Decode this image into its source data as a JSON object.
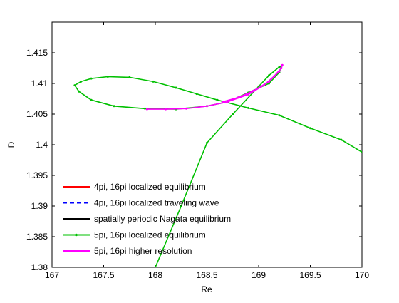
{
  "chart_data": {
    "type": "line",
    "title": "",
    "xlabel": "Re",
    "ylabel": "D",
    "xlim": [
      167,
      170
    ],
    "ylim": [
      1.38,
      1.42
    ],
    "xticks": [
      167,
      167.5,
      168,
      168.5,
      169,
      169.5,
      170
    ],
    "yticks": [
      1.38,
      1.385,
      1.39,
      1.395,
      1.4,
      1.405,
      1.41,
      1.415
    ],
    "xtick_labels": [
      "167",
      "167.5",
      "168",
      "168.5",
      "169",
      "169.5",
      "170"
    ],
    "ytick_labels": [
      "1.38",
      "1.385",
      "1.39",
      "1.395",
      "1.4",
      "1.405",
      "1.41",
      "1.415"
    ],
    "grid": false,
    "legend_position": "bottom-left",
    "series": [
      {
        "name": "4pi, 16pi localized equilibrium",
        "color": "#ff0000",
        "style": "solid",
        "marker": "none",
        "points": []
      },
      {
        "name": "4pi, 16pi localized traveling wave",
        "color": "#0000ff",
        "style": "dashed",
        "marker": "none",
        "points": []
      },
      {
        "name": "spatially periodic Nagata equilibrium",
        "color": "#000000",
        "style": "solid",
        "marker": "none",
        "points": []
      },
      {
        "name": "5pi, 16pi localized equilibrium",
        "color": "#00c000",
        "style": "solid",
        "marker": "dot",
        "points": [
          [
            168.0,
            1.38
          ],
          [
            168.25,
            1.39
          ],
          [
            168.5,
            1.4003
          ],
          [
            168.75,
            1.405
          ],
          [
            169.0,
            1.4095
          ],
          [
            169.1,
            1.4113
          ],
          [
            169.2,
            1.4127
          ],
          [
            169.22,
            1.4128
          ],
          [
            169.2,
            1.4118
          ],
          [
            169.1,
            1.41
          ],
          [
            168.9,
            1.4085
          ],
          [
            168.7,
            1.407
          ],
          [
            168.5,
            1.4063
          ],
          [
            168.2,
            1.4058
          ],
          [
            167.9,
            1.4059
          ],
          [
            167.6,
            1.4063
          ],
          [
            167.38,
            1.4073
          ],
          [
            167.26,
            1.4087
          ],
          [
            167.22,
            1.4097
          ],
          [
            167.28,
            1.4103
          ],
          [
            167.38,
            1.4108
          ],
          [
            167.54,
            1.4111
          ],
          [
            167.75,
            1.411
          ],
          [
            167.98,
            1.4103
          ],
          [
            168.2,
            1.4093
          ],
          [
            168.4,
            1.4083
          ],
          [
            168.6,
            1.4073
          ],
          [
            168.9,
            1.406
          ],
          [
            169.2,
            1.4048
          ],
          [
            169.5,
            1.4027
          ],
          [
            169.8,
            1.4008
          ],
          [
            170.0,
            1.3988
          ]
        ]
      },
      {
        "name": "5pi, 16pi higher resolution",
        "color": "#ff00ff",
        "style": "solid",
        "marker": "dot",
        "points": [
          [
            167.92,
            1.4058
          ],
          [
            168.1,
            1.4058
          ],
          [
            168.3,
            1.4059
          ],
          [
            168.5,
            1.4063
          ],
          [
            168.7,
            1.407
          ],
          [
            168.9,
            1.4082
          ],
          [
            169.05,
            1.4097
          ],
          [
            169.15,
            1.4112
          ],
          [
            169.22,
            1.4125
          ],
          [
            169.23,
            1.413
          ],
          [
            169.2,
            1.412
          ],
          [
            169.1,
            1.4103
          ],
          [
            168.95,
            1.4088
          ],
          [
            168.8,
            1.4077
          ],
          [
            168.65,
            1.407
          ]
        ]
      }
    ]
  }
}
